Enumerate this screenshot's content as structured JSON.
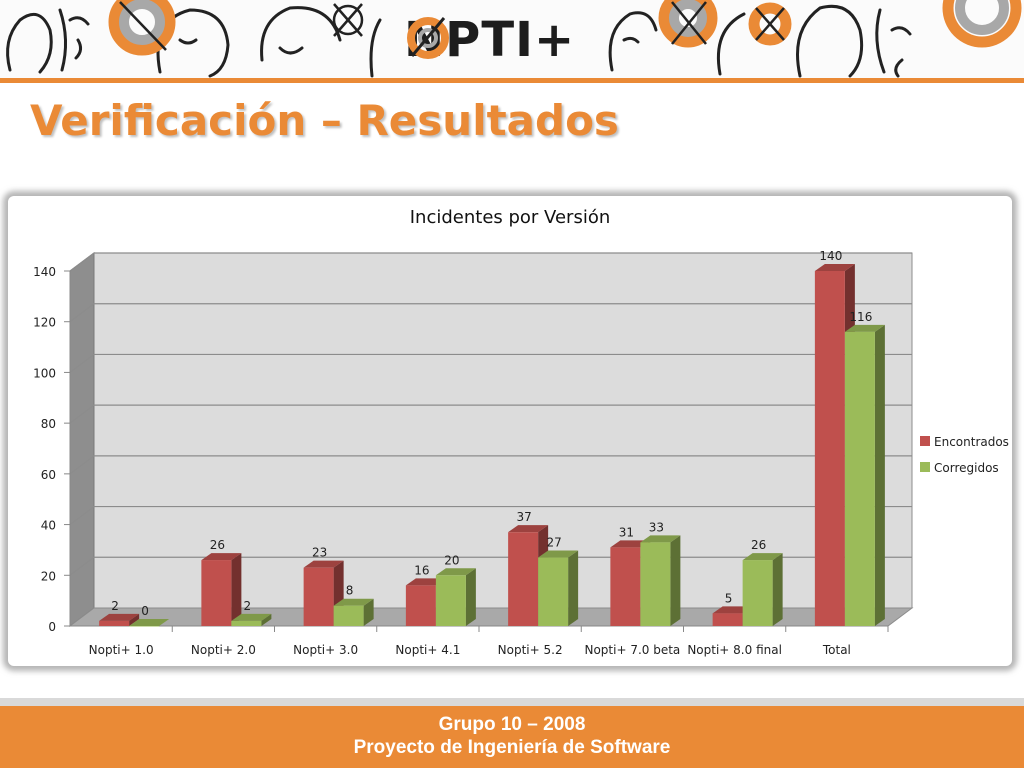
{
  "header": {
    "logo_text": "NOPTI+",
    "logo_prefix": "N",
    "logo_suffix": "PTI+"
  },
  "slide": {
    "title": "Verificación – Resultados"
  },
  "footer": {
    "line1": "Grupo 10 – 2008",
    "line2": "Proyecto de Ingeniería de Software"
  },
  "colors": {
    "accent": "#ea8a36",
    "encontrados": "#c0504d",
    "corregidos": "#9bbb59"
  },
  "chart_data": {
    "type": "bar",
    "title": "Incidentes por Versión",
    "categories": [
      "Nopti+ 1.0",
      "Nopti+ 2.0",
      "Nopti+ 3.0",
      "Nopti+ 4.1",
      "Nopti+ 5.2",
      "Nopti+ 7.0 beta",
      "Nopti+ 8.0 final",
      "Total"
    ],
    "series": [
      {
        "name": "Encontrados",
        "values": [
          2,
          26,
          23,
          16,
          37,
          31,
          5,
          140
        ]
      },
      {
        "name": "Corregidos",
        "values": [
          0,
          2,
          8,
          20,
          27,
          33,
          26,
          116
        ]
      }
    ],
    "ylim": [
      0,
      140
    ],
    "yticks": [
      0,
      20,
      40,
      60,
      80,
      100,
      120,
      140
    ],
    "grid": true,
    "legend": "right",
    "style": "3d-clustered-column"
  }
}
